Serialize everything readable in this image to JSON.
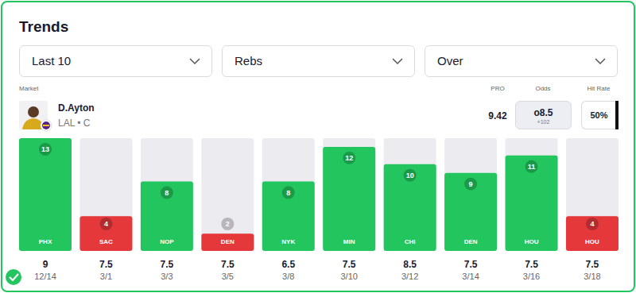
{
  "header": {
    "title": "Trends",
    "filters": [
      "Last 10",
      "Rebs",
      "Over"
    ],
    "market_label": "Market",
    "player": {
      "name": "D.Ayton",
      "team": "LAL • C"
    },
    "columns": {
      "pro": "PRO",
      "odds": "Odds",
      "hit_rate": "Hit Rate"
    },
    "pro": 9.42,
    "odds": {
      "line": "o8.5",
      "price": "+102"
    },
    "hit_rate": "50%"
  },
  "chart_data": {
    "type": "bar",
    "categories": [
      "PHX",
      "SAC",
      "NOP",
      "DEN",
      "NYK",
      "MIN",
      "CHI",
      "DEN",
      "HOU",
      "HOU"
    ],
    "values": [
      13,
      4,
      8,
      2,
      8,
      12,
      10,
      9,
      11,
      4
    ],
    "colors": [
      "#22c55e",
      "#e5383b",
      "#22c55e",
      "#e5383b",
      "#22c55e",
      "#22c55e",
      "#22c55e",
      "#22c55e",
      "#22c55e",
      "#e5383b"
    ],
    "lines": [
      9,
      7.5,
      7.5,
      7.5,
      6.5,
      7.5,
      8.5,
      7.5,
      7.5,
      7.5
    ],
    "dates": [
      "12/14",
      "3/1",
      "3/3",
      "3/5",
      "3/8",
      "3/10",
      "3/12",
      "3/14",
      "3/16",
      "3/18"
    ],
    "ylim": [
      0,
      13
    ],
    "tick_labels": false,
    "data_labels": true
  }
}
